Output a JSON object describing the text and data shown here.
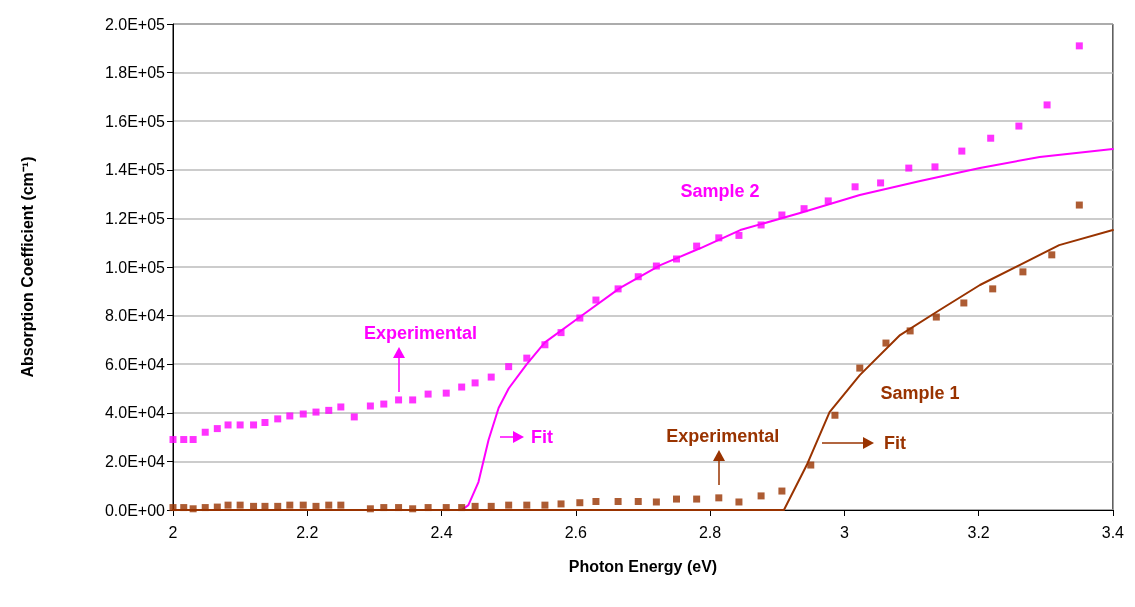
{
  "chart_data": {
    "type": "scatter",
    "xlabel": "Photon Energy (eV)",
    "ylabel": "Absorption Coefficient (cm⁻¹)",
    "xlim": [
      2,
      3.4
    ],
    "xticks": [
      2,
      2.2,
      2.4,
      2.6,
      2.8,
      3,
      3.2,
      3.4
    ],
    "ylim": [
      0,
      200000
    ],
    "yticks": [
      {
        "value": 0,
        "label": "0.0E+00"
      },
      {
        "value": 20000,
        "label": "2.0E+04"
      },
      {
        "value": 40000,
        "label": "4.0E+04"
      },
      {
        "value": 60000,
        "label": "6.0E+04"
      },
      {
        "value": 80000,
        "label": "8.0E+04"
      },
      {
        "value": 100000,
        "label": "1.0E+05"
      },
      {
        "value": 120000,
        "label": "1.2E+05"
      },
      {
        "value": 140000,
        "label": "1.4E+05"
      },
      {
        "value": 160000,
        "label": "1.6E+05"
      },
      {
        "value": 180000,
        "label": "1.8E+05"
      },
      {
        "value": 200000,
        "label": "2.0E+05"
      }
    ],
    "grid": "y",
    "series": [
      {
        "marker": "square",
        "color": "#ff00ff",
        "x": [
          2.0,
          2.016,
          2.03,
          2.048,
          2.066,
          2.082,
          2.1,
          2.12,
          2.137,
          2.156,
          2.174,
          2.194,
          2.213,
          2.232,
          2.25,
          2.27,
          2.294,
          2.314,
          2.336,
          2.357,
          2.38,
          2.407,
          2.43,
          2.45,
          2.474,
          2.5,
          2.527,
          2.554,
          2.578,
          2.606,
          2.63,
          2.663,
          2.693,
          2.72,
          2.75,
          2.78,
          2.813,
          2.843,
          2.876,
          2.907,
          2.94,
          2.976,
          3.016,
          3.054,
          3.096,
          3.135,
          3.175,
          3.218,
          3.26,
          3.302,
          3.35
        ],
        "values": [
          29000,
          29000,
          29000,
          32000,
          33500,
          35000,
          35000,
          35000,
          36000,
          37500,
          38700,
          39500,
          40300,
          41000,
          42400,
          38300,
          42800,
          43600,
          45300,
          45300,
          47700,
          48100,
          50600,
          52300,
          54700,
          59000,
          62500,
          68000,
          73000,
          79000,
          86400,
          91000,
          96000,
          100400,
          103300,
          108600,
          112000,
          113000,
          117300,
          121400,
          124000,
          127200,
          133000,
          134600,
          140700,
          141200,
          147700,
          153000,
          158000,
          166700,
          191000
        ]
      },
      {
        "type": "line",
        "marker": "none",
        "line_style": "solid",
        "color": "#ff00ff",
        "x": [
          2.43,
          2.44,
          2.455,
          2.47,
          2.485,
          2.5,
          2.527,
          2.554,
          2.606,
          2.666,
          2.726,
          2.786,
          2.845,
          2.934,
          3.023,
          3.113,
          3.202,
          3.291,
          3.4
        ],
        "values": [
          0,
          2000,
          11500,
          28800,
          42000,
          50000,
          60000,
          69000,
          79400,
          91400,
          100800,
          107800,
          115200,
          122200,
          129600,
          135400,
          140700,
          145300,
          148600
        ]
      },
      {
        "marker": "square",
        "color": "#993300",
        "x": [
          2.0,
          2.016,
          2.03,
          2.048,
          2.066,
          2.082,
          2.1,
          2.12,
          2.137,
          2.156,
          2.174,
          2.194,
          2.213,
          2.232,
          2.25,
          2.294,
          2.314,
          2.336,
          2.357,
          2.38,
          2.407,
          2.43,
          2.45,
          2.474,
          2.5,
          2.527,
          2.554,
          2.578,
          2.606,
          2.63,
          2.663,
          2.693,
          2.72,
          2.75,
          2.78,
          2.813,
          2.843,
          2.876,
          2.907,
          2.95,
          2.986,
          3.023,
          3.062,
          3.098,
          3.137,
          3.178,
          3.221,
          3.266,
          3.309,
          3.35
        ],
        "values": [
          1000,
          1000,
          500,
          1000,
          1200,
          2000,
          2000,
          1500,
          1500,
          1500,
          2000,
          2000,
          1500,
          2000,
          2000,
          500,
          1000,
          1000,
          500,
          1000,
          1000,
          1000,
          1500,
          1500,
          2000,
          2000,
          2000,
          2500,
          3000,
          3500,
          3500,
          3500,
          3300,
          4500,
          4500,
          5000,
          3300,
          5800,
          7800,
          18500,
          39000,
          58400,
          68700,
          73700,
          79400,
          85200,
          91000,
          98000,
          105000,
          125500
        ]
      },
      {
        "type": "line",
        "marker": "none",
        "line_style": "solid",
        "color": "#993300",
        "x": [
          2.0,
          2.91,
          2.944,
          2.978,
          3.023,
          3.083,
          3.142,
          3.202,
          3.261,
          3.32,
          3.4
        ],
        "values": [
          0,
          0,
          18500,
          40300,
          55500,
          72000,
          82300,
          92600,
          100800,
          109000,
          115200
        ]
      }
    ],
    "annotations": [
      {
        "text": "Experimental",
        "x": 2.336,
        "y": 45300
      },
      "Fit",
      "Sample 2",
      {
        "text": "Experimental",
        "x": 2.813,
        "y": 5000
      },
      "Sample 1",
      "Fit"
    ]
  }
}
